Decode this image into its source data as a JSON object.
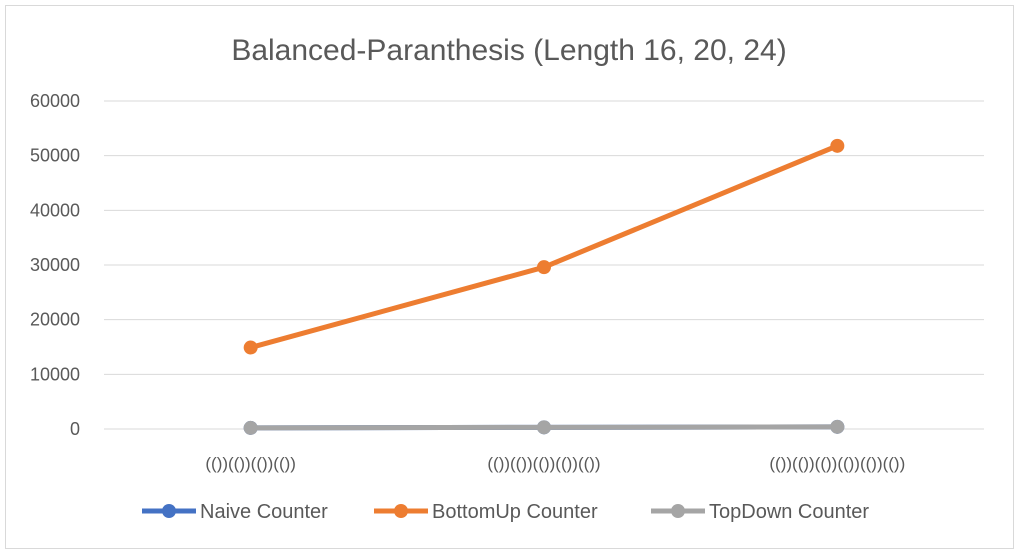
{
  "chart_data": {
    "type": "line",
    "title": "Balanced-Paranthesis (Length 16, 20, 24)",
    "xlabel": "",
    "ylabel": "",
    "categories": [
      "(())(())(())(())",
      "(())(())(())(())(())",
      "(())(())(())(())(())(())"
    ],
    "ylim": [
      0,
      60000
    ],
    "yticks": [
      0,
      10000,
      20000,
      30000,
      40000,
      50000,
      60000
    ],
    "grid": true,
    "legend_position": "bottom",
    "series": [
      {
        "name": "Naive Counter",
        "color": "#4472c4",
        "values": [
          200,
          300,
          400
        ]
      },
      {
        "name": "BottomUp Counter",
        "color": "#ed7d31",
        "values": [
          14900,
          29600,
          51800
        ]
      },
      {
        "name": "TopDown Counter",
        "color": "#a5a5a5",
        "values": [
          200,
          300,
          400
        ]
      }
    ]
  }
}
